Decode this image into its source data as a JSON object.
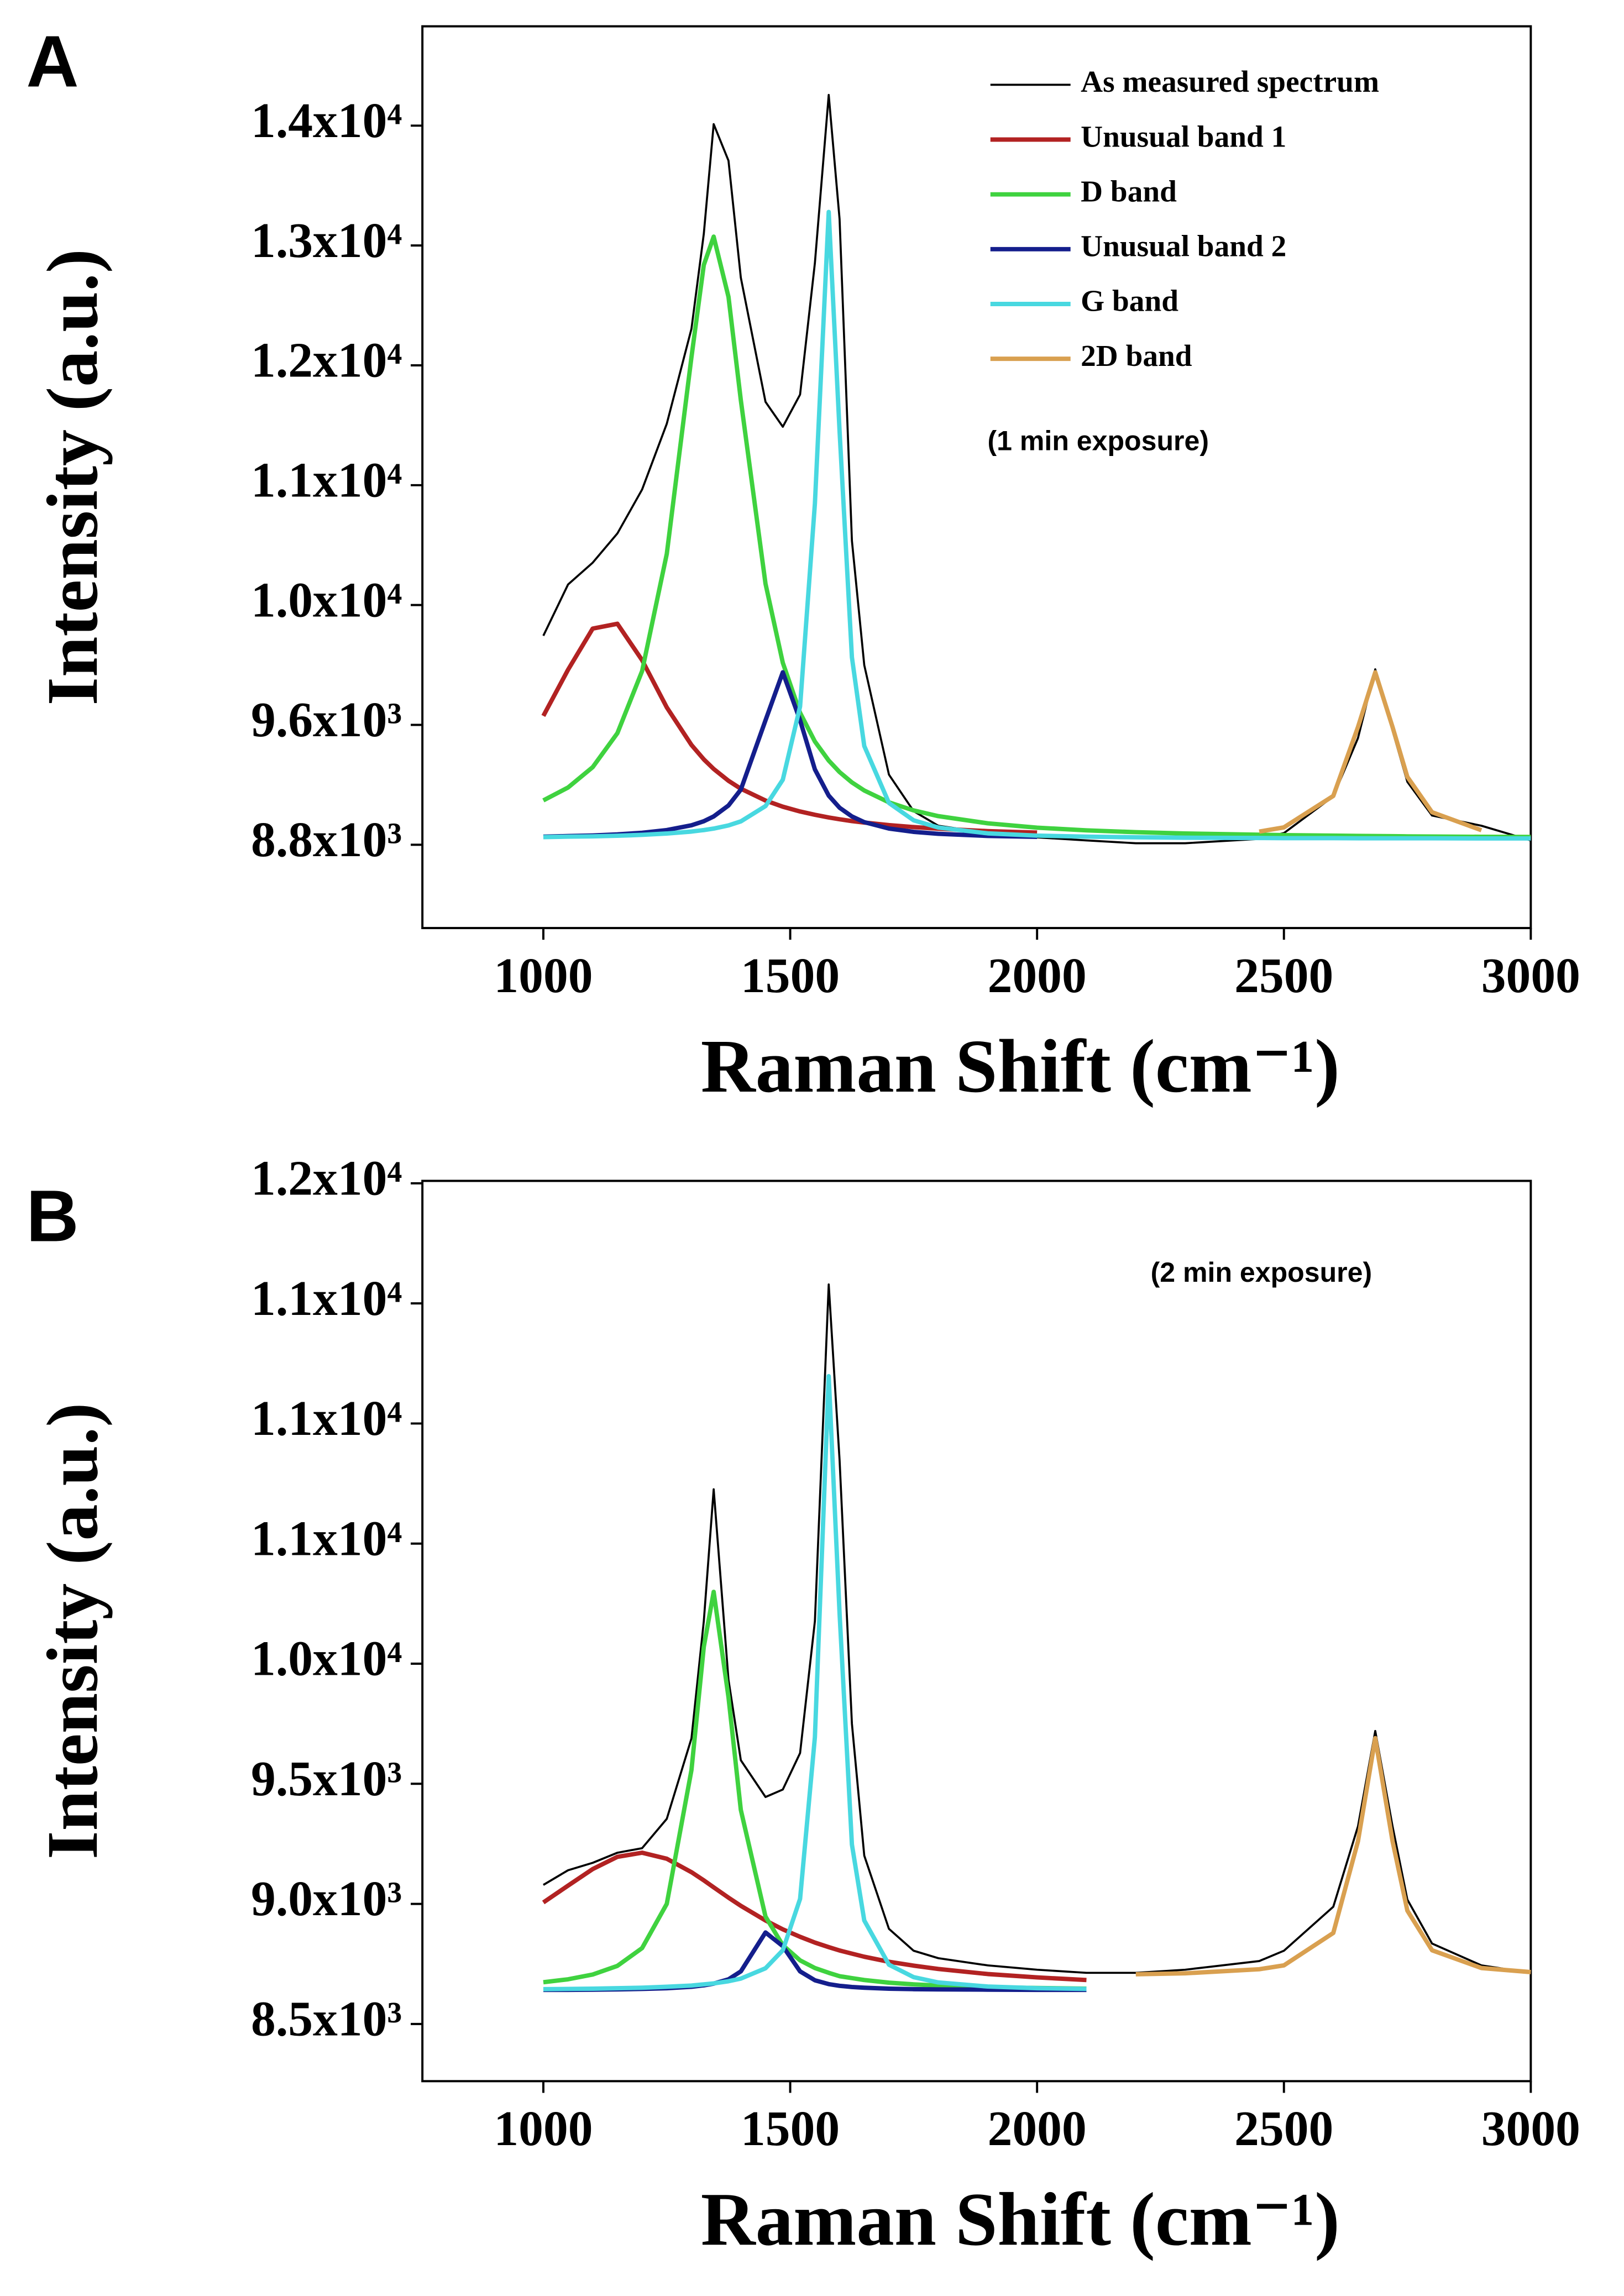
{
  "chart_data": [
    {
      "type": "line",
      "panel_label": "A",
      "xlabel": "Raman Shift (cm⁻¹)",
      "ylabel": "Intensity (a.u.)",
      "annotation": "(1 min exposure)",
      "legend": true,
      "legend_position": "upper right",
      "xlim": [
        755,
        3000
      ],
      "xticks": [
        1000,
        1500,
        2000,
        2500,
        3000
      ],
      "ylim": [
        8244,
        14263
      ],
      "yticks": [
        {
          "value": 8800,
          "label": "8.8x10³"
        },
        {
          "value": 9600,
          "label": "9.6x10³"
        },
        {
          "value": 10400,
          "label": "1.0x10⁴"
        },
        {
          "value": 11200,
          "label": "1.1x10⁴"
        },
        {
          "value": 12000,
          "label": "1.2x10⁴"
        },
        {
          "value": 12800,
          "label": "1.3x10⁴"
        },
        {
          "value": 13600,
          "label": "1.4x10⁴"
        }
      ],
      "x": [
        1000,
        1050,
        1100,
        1150,
        1200,
        1250,
        1300,
        1325,
        1345,
        1375,
        1400,
        1450,
        1485,
        1520,
        1550,
        1578,
        1600,
        1625,
        1650,
        1700,
        1750,
        1800,
        1900,
        2000,
        2100,
        2200,
        2300,
        2450,
        2500,
        2600,
        2650,
        2685,
        2720,
        2750,
        2800,
        2900,
        3000
      ],
      "series": [
        {
          "name": "As measured spectrum",
          "color": "#000000",
          "values": [
            10195,
            10537,
            10683,
            10878,
            11171,
            11610,
            12244,
            12878,
            13610,
            13366,
            12585,
            11756,
            11590,
            11805,
            12683,
            13805,
            12976,
            10829,
            9999,
            9268,
            9024,
            8927,
            8878,
            8849,
            8829,
            8810,
            8810,
            8839,
            8878,
            9122,
            9512,
            9971,
            9561,
            9220,
            8995,
            8927,
            8829
          ]
        },
        {
          "name": "Unusual band 1",
          "color": "#b22222",
          "values": [
            9660,
            9968,
            10243,
            10275,
            10032,
            9717,
            9466,
            9370,
            9306,
            9227,
            9174,
            9095,
            9054,
            9022,
            9000,
            8982,
            8970,
            8958,
            8948,
            8931,
            8918,
            8907,
            8891,
            8881,
            null,
            null,
            null,
            null,
            null,
            null,
            null,
            null,
            null,
            null,
            null,
            null,
            null
          ]
        },
        {
          "name": "D band",
          "color": "#3fd23f",
          "values": [
            9096,
            9182,
            9318,
            9545,
            9959,
            10741,
            12055,
            12670,
            12859,
            12457,
            11767,
            10542,
            10015,
            9681,
            9489,
            9362,
            9285,
            9216,
            9162,
            9083,
            9029,
            8991,
            8943,
            8914,
            8896,
            8884,
            8875,
            8867,
            8864,
            8861,
            8859,
            8858,
            8857,
            8856,
            8855,
            8853,
            8852
          ]
        },
        {
          "name": "Unusual band 2",
          "color": "#141e8c",
          "values": [
            8854,
            8858,
            8862,
            8869,
            8880,
            8898,
            8930,
            8957,
            8989,
            9062,
            9168,
            9631,
            9951,
            9631,
            9303,
            9128,
            9047,
            8989,
            8951,
            8908,
            8886,
            8873,
            8859,
            8853,
            null,
            null,
            null,
            null,
            null,
            null,
            null,
            null,
            null,
            null,
            null,
            null,
            null
          ]
        },
        {
          "name": "G band",
          "color": "#48d8e0",
          "values": [
            8851,
            8854,
            8856,
            8860,
            8866,
            8875,
            8888,
            8898,
            8908,
            8929,
            8956,
            9058,
            9234,
            9723,
            11076,
            13024,
            11560,
            10051,
            9459,
            9079,
            8963,
            8915,
            8876,
            8861,
            8854,
            8850,
            8847,
            8845,
            8844,
            8844,
            8843,
            8843,
            8843,
            8843,
            8843,
            8842,
            8842
          ]
        },
        {
          "name": "2D band",
          "color": "#d9a050",
          "values": [
            null,
            null,
            null,
            null,
            null,
            null,
            null,
            null,
            null,
            null,
            null,
            null,
            null,
            null,
            null,
            null,
            null,
            null,
            null,
            null,
            null,
            null,
            null,
            null,
            null,
            null,
            null,
            8888,
            8916,
            9126,
            9586,
            9951,
            9586,
            9253,
            9017,
            8897,
            null
          ]
        }
      ]
    },
    {
      "type": "line",
      "panel_label": "B",
      "xlabel": "Raman Shift (cm⁻¹)",
      "ylabel": "Intensity (a.u.)",
      "annotation": "(2 min exposure)",
      "legend": false,
      "xlim": [
        755,
        3000
      ],
      "xticks": [
        1000,
        1500,
        2000,
        2500,
        3000
      ],
      "ylim": [
        8262,
        12010
      ],
      "yticks": [
        {
          "value": 8500,
          "label": "8.5x10³"
        },
        {
          "value": 9000,
          "label": "9.0x10³"
        },
        {
          "value": 9500,
          "label": "9.5x10³"
        },
        {
          "value": 10000,
          "label": "1.0x10⁴"
        },
        {
          "value": 10500,
          "label": "1.1x10⁴"
        },
        {
          "value": 11000,
          "label": "1.1x10⁴"
        },
        {
          "value": 11500,
          "label": "1.1x10⁴"
        },
        {
          "value": 12000,
          "label": "1.2x10⁴"
        }
      ],
      "x": [
        1000,
        1050,
        1100,
        1150,
        1200,
        1250,
        1300,
        1325,
        1345,
        1375,
        1400,
        1450,
        1485,
        1520,
        1550,
        1578,
        1600,
        1625,
        1650,
        1700,
        1750,
        1800,
        1900,
        2000,
        2100,
        2200,
        2300,
        2450,
        2500,
        2600,
        2650,
        2685,
        2720,
        2750,
        2800,
        2900,
        3000
      ],
      "series": [
        {
          "color": "#000000",
          "values": [
            9079,
            9140,
            9171,
            9213,
            9232,
            9354,
            9689,
            10177,
            10726,
            9933,
            9598,
            9445,
            9476,
            9628,
            10177,
            11579,
            10848,
            9750,
            9201,
            8896,
            8805,
            8774,
            8744,
            8726,
            8713,
            8713,
            8726,
            8762,
            8805,
            8988,
            9323,
            9720,
            9323,
            9018,
            8835,
            8744,
            8713
          ]
        },
        {
          "color": "#b22222",
          "values": [
            9006,
            9076,
            9145,
            9196,
            9213,
            9188,
            9132,
            9098,
            9069,
            9026,
            8992,
            8931,
            8894,
            8863,
            8839,
            8820,
            8806,
            8793,
            8780,
            8759,
            8743,
            8729,
            8708,
            8694,
            8683,
            null,
            null,
            null,
            null,
            null,
            null,
            null,
            null,
            null,
            null,
            null,
            null
          ]
        },
        {
          "color": "#3fd23f",
          "values": [
            8674,
            8686,
            8706,
            8742,
            8816,
            9000,
            9557,
            10070,
            10299,
            9860,
            9391,
            8947,
            8828,
            8765,
            8733,
            8713,
            8699,
            8691,
            8683,
            8672,
            8665,
            8660,
            8653,
            8650,
            8647,
            null,
            null,
            null,
            null,
            null,
            null,
            null,
            null,
            null,
            null,
            null,
            null
          ]
        },
        {
          "color": "#141e8c",
          "values": [
            8642,
            8642,
            8643,
            8644,
            8646,
            8649,
            8655,
            8661,
            8668,
            8686,
            8719,
            8881,
            8824,
            8719,
            8682,
            8666,
            8659,
            8654,
            8651,
            8647,
            8645,
            8644,
            8643,
            8642,
            8642,
            null,
            null,
            null,
            null,
            null,
            null,
            null,
            null,
            null,
            null,
            null,
            null
          ]
        },
        {
          "color": "#48d8e0",
          "values": [
            8645,
            8646,
            8647,
            8649,
            8651,
            8655,
            8660,
            8665,
            8669,
            8678,
            8689,
            8732,
            8807,
            9021,
            9694,
            11197,
            10209,
            9247,
            8931,
            8747,
            8695,
            8673,
            8656,
            8649,
            8646,
            null,
            null,
            null,
            null,
            null,
            null,
            null,
            null,
            null,
            null,
            null,
            null
          ]
        },
        {
          "color": "#d9a050",
          "values": [
            null,
            null,
            null,
            null,
            null,
            null,
            null,
            null,
            null,
            null,
            null,
            null,
            null,
            null,
            null,
            null,
            null,
            null,
            null,
            null,
            null,
            null,
            null,
            null,
            null,
            8707,
            8711,
            8728,
            8744,
            8879,
            9261,
            9690,
            9261,
            8972,
            8807,
            8733,
            8716
          ]
        }
      ]
    }
  ]
}
